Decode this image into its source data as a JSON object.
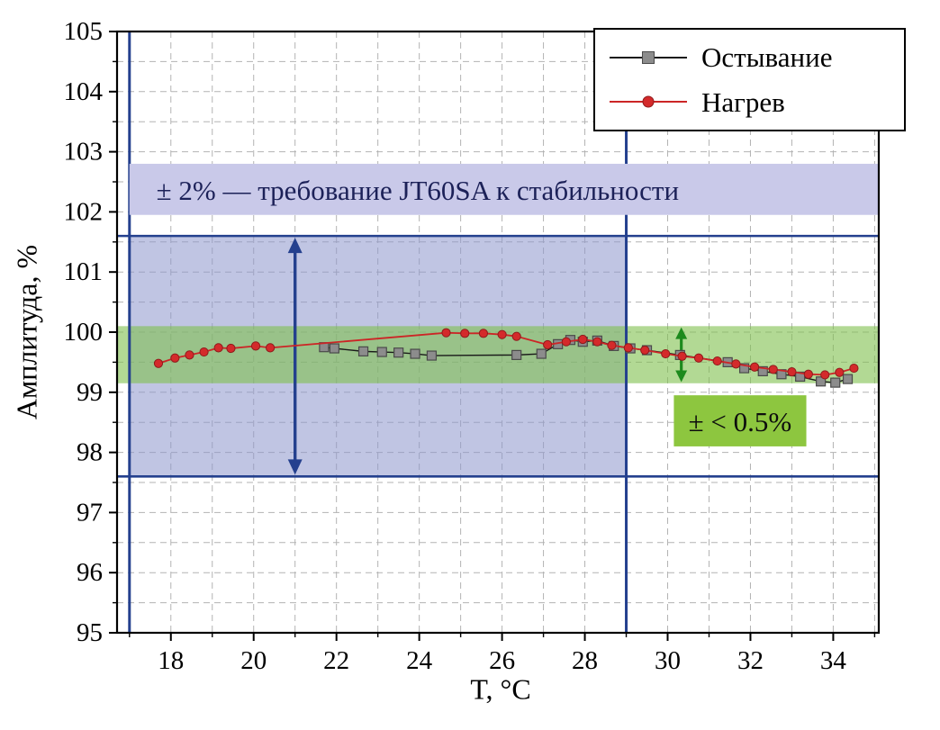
{
  "chart_data": {
    "type": "line",
    "title": "",
    "xlabel": "T, °C",
    "ylabel": "Амплитуда, %",
    "xlim": [
      16.7,
      35.1
    ],
    "ylim": [
      95,
      105
    ],
    "x_major_ticks": [
      18,
      20,
      22,
      24,
      26,
      28,
      30,
      32,
      34
    ],
    "y_major_ticks": [
      95,
      96,
      97,
      98,
      99,
      100,
      101,
      102,
      103,
      104,
      105
    ],
    "x_grid_step": 1,
    "y_grid_step": 0.5,
    "grid": true,
    "grid_color": "#b3b3b3",
    "legend_position": "top-right",
    "series": [
      {
        "name": "Остывание",
        "color": "#1a1a1a",
        "line_width": 1.4,
        "marker": "square",
        "marker_color": "#8c8c8c",
        "marker_edge": "#4a4a4a",
        "x": [
          21.7,
          21.95,
          22.65,
          23.1,
          23.5,
          23.9,
          24.3,
          26.35,
          26.95,
          27.35,
          27.65,
          27.95,
          28.3,
          28.7,
          29.1,
          29.5,
          30.3,
          31.45,
          31.85,
          32.3,
          32.75,
          33.2,
          33.7,
          34.05,
          34.35
        ],
        "y": [
          99.75,
          99.73,
          99.68,
          99.67,
          99.66,
          99.64,
          99.61,
          99.62,
          99.64,
          99.8,
          99.87,
          99.84,
          99.86,
          99.77,
          99.73,
          99.7,
          99.62,
          99.5,
          99.4,
          99.35,
          99.3,
          99.26,
          99.18,
          99.16,
          99.22
        ]
      },
      {
        "name": "Нагрев",
        "color": "#cc2526",
        "line_width": 1.8,
        "marker": "circle",
        "marker_color": "#d42a2b",
        "marker_edge": "#8f1b1c",
        "x": [
          17.7,
          18.1,
          18.45,
          18.8,
          19.15,
          19.45,
          20.05,
          20.4,
          24.65,
          25.1,
          25.55,
          26.0,
          26.35,
          27.1,
          27.55,
          27.95,
          28.3,
          28.65,
          29.05,
          29.45,
          29.95,
          30.35,
          30.75,
          31.2,
          31.65,
          32.1,
          32.55,
          33.0,
          33.4,
          33.8,
          34.15,
          34.5
        ],
        "y": [
          99.48,
          99.57,
          99.62,
          99.67,
          99.74,
          99.73,
          99.77,
          99.74,
          99.99,
          99.98,
          99.98,
          99.96,
          99.93,
          99.79,
          99.84,
          99.88,
          99.84,
          99.78,
          99.74,
          99.7,
          99.64,
          99.6,
          99.57,
          99.52,
          99.47,
          99.42,
          99.38,
          99.34,
          99.3,
          99.29,
          99.33,
          99.4
        ]
      }
    ],
    "bands": [
      {
        "name": "jt60sa-tolerance-band",
        "x0": 17,
        "x1": 29,
        "y0": 97.6,
        "y1": 101.6,
        "fill": "#8d96cc",
        "opacity": 0.55
      },
      {
        "name": "half-percent-band",
        "x0": 16.7,
        "x1": 35.1,
        "y0": 99.15,
        "y1": 100.1,
        "fill": "#7fbf4d",
        "opacity": 0.6
      }
    ],
    "hlines": [
      {
        "y": 101.6,
        "color": "#24408e",
        "width": 2.6
      },
      {
        "y": 97.6,
        "color": "#24408e",
        "width": 2.6
      }
    ],
    "vlines": [
      {
        "x": 17,
        "color": "#24408e",
        "width": 3
      },
      {
        "x": 29,
        "color": "#24408e",
        "width": 3
      }
    ],
    "arrows": [
      {
        "x": 21.0,
        "y0": 97.63,
        "y1": 101.57,
        "color": "#24408e",
        "width": 3.4,
        "head_len": 17,
        "head_w": 8
      },
      {
        "x": 30.33,
        "y0": 99.17,
        "y1": 100.08,
        "color": "#1d8a1d",
        "width": 3.2,
        "head_len": 13,
        "head_w": 6.5
      }
    ],
    "annotations": [
      {
        "text": "± 2% — требование JT60SA к стабильности",
        "box_fill": "#c9c9e9",
        "text_color": "#1c2158",
        "x0": 17.0,
        "x1": 35.1,
        "y0": 101.95,
        "y1": 102.8,
        "text_x": 17.65,
        "align": "left",
        "font_size": 31
      },
      {
        "text": "± < 0.5%",
        "box_fill": "#8dc63f",
        "text_color": "#0d0d0d",
        "x0": 30.15,
        "x1": 33.35,
        "y0": 98.1,
        "y1": 98.95,
        "text_x": 31.75,
        "align": "center",
        "font_size": 31
      }
    ],
    "legend": {
      "entries": [
        "Остывание",
        "Нагрев"
      ]
    }
  }
}
